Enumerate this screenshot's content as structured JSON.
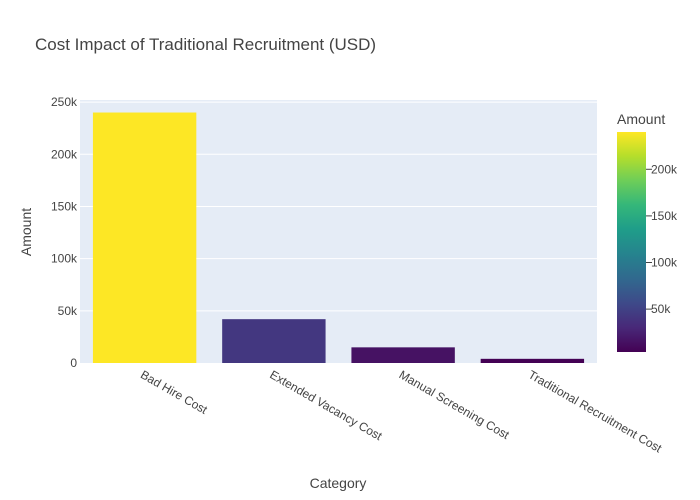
{
  "chart_data": {
    "type": "bar",
    "title": "Cost Impact of Traditional Recruitment (USD)",
    "xlabel": "Category",
    "ylabel": "Amount",
    "categories": [
      "Bad Hire Cost",
      "Extended Vacancy Cost",
      "Manual Screening Cost",
      "Traditional Recruitment Cost"
    ],
    "values": [
      240000,
      42000,
      15000,
      4000
    ],
    "ylim": [
      0,
      252000
    ],
    "yticks": [
      0,
      50000,
      100000,
      150000,
      200000,
      250000
    ],
    "ytick_labels": [
      "0",
      "50k",
      "100k",
      "150k",
      "200k",
      "250k"
    ],
    "grid": true,
    "colorscale": "Viridis",
    "colorbar": {
      "title": "Amount",
      "range": [
        4000,
        240000
      ],
      "ticks": [
        50000,
        100000,
        150000,
        200000
      ],
      "tick_labels": [
        "50k",
        "100k",
        "150k",
        "200k"
      ],
      "placement": "right"
    },
    "plot_background": "#e5ecf6"
  }
}
